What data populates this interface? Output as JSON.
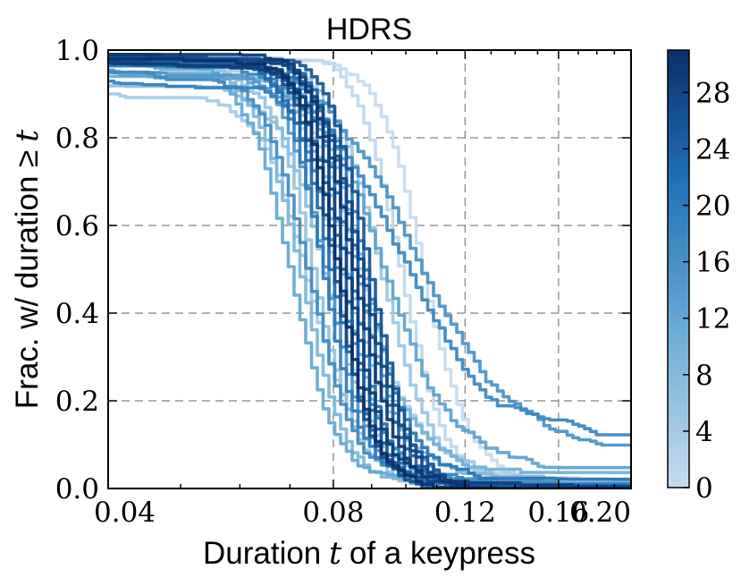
{
  "chart_data": {
    "type": "line",
    "title": "HDRS",
    "xlabel_text": "Duration",
    "xlabel_var": "t",
    "xlabel_rest": "of a keypress",
    "ylabel_text": "Frac. w/ duration ≥",
    "ylabel_var": "t",
    "x_scale": "log",
    "xlim": [
      0.04,
      0.2
    ],
    "ylim": [
      0.0,
      1.0
    ],
    "x_ticks": [
      0.04,
      0.08,
      0.12,
      0.16,
      0.2
    ],
    "x_tick_labels": [
      "0.04",
      "0.08",
      "0.12",
      "0.16",
      "0.20"
    ],
    "y_ticks": [
      0.0,
      0.2,
      0.4,
      0.6,
      0.8,
      1.0
    ],
    "y_tick_labels": [
      "0.0",
      "0.2",
      "0.4",
      "0.6",
      "0.8",
      "1.0"
    ],
    "grid": true,
    "colorbar": {
      "position": "right",
      "range": [
        0,
        31
      ],
      "ticks": [
        0,
        4,
        8,
        12,
        16,
        20,
        24,
        28
      ],
      "tick_labels": [
        "0",
        "4",
        "8",
        "12",
        "16",
        "20",
        "24",
        "28"
      ],
      "color_low": "#c6dbef",
      "color_high": "#08306b"
    },
    "series_note_colorbar_value_key": "c",
    "series": [
      {
        "c": 0,
        "start": 0.99,
        "x50": 0.105,
        "steep": 7.5,
        "tail": 0.02
      },
      {
        "c": 1,
        "start": 0.99,
        "x50": 0.098,
        "steep": 8.0,
        "tail": 0.01
      },
      {
        "c": 2,
        "start": 0.98,
        "x50": 0.08,
        "steep": 8.5,
        "tail": 0.0
      },
      {
        "c": 3,
        "start": 0.97,
        "x50": 0.086,
        "steep": 6.0,
        "tail": 0.03
      },
      {
        "c": 4,
        "start": 0.9,
        "x50": 0.074,
        "steep": 7.0,
        "tail": 0.02
      },
      {
        "c": 5,
        "start": 0.99,
        "x50": 0.092,
        "steep": 6.5,
        "tail": 0.02
      },
      {
        "c": 6,
        "start": 0.97,
        "x50": 0.075,
        "steep": 7.8,
        "tail": 0.01
      },
      {
        "c": 7,
        "start": 0.92,
        "x50": 0.078,
        "steep": 7.2,
        "tail": 0.02
      },
      {
        "c": 8,
        "start": 0.98,
        "x50": 0.083,
        "steep": 7.0,
        "tail": 0.03
      },
      {
        "c": 9,
        "start": 0.96,
        "x50": 0.072,
        "steep": 7.5,
        "tail": 0.01
      },
      {
        "c": 10,
        "start": 0.98,
        "x50": 0.087,
        "steep": 6.8,
        "tail": 0.04
      },
      {
        "c": 11,
        "start": 0.94,
        "x50": 0.082,
        "steep": 8.5,
        "tail": 0.02
      },
      {
        "c": 12,
        "start": 0.97,
        "x50": 0.07,
        "steep": 7.6,
        "tail": 0.01
      },
      {
        "c": 13,
        "start": 0.95,
        "x50": 0.093,
        "steep": 5.0,
        "tail": 0.05
      },
      {
        "c": 14,
        "start": 0.99,
        "x50": 0.085,
        "steep": 7.2,
        "tail": 0.02
      },
      {
        "c": 15,
        "start": 0.96,
        "x50": 0.078,
        "steep": 8.2,
        "tail": 0.01
      },
      {
        "c": 16,
        "start": 0.99,
        "x50": 0.102,
        "steep": 3.6,
        "tail": 0.09
      },
      {
        "c": 17,
        "start": 0.95,
        "x50": 0.074,
        "steep": 7.4,
        "tail": 0.02
      },
      {
        "c": 18,
        "start": 0.98,
        "x50": 0.097,
        "steep": 3.8,
        "tail": 0.12
      },
      {
        "c": 19,
        "start": 0.93,
        "x50": 0.081,
        "steep": 8.0,
        "tail": 0.02
      },
      {
        "c": 20,
        "start": 0.99,
        "x50": 0.077,
        "steep": 9.0,
        "tail": 0.01
      },
      {
        "c": 21,
        "start": 0.97,
        "x50": 0.088,
        "steep": 7.8,
        "tail": 0.03
      },
      {
        "c": 22,
        "start": 0.99,
        "x50": 0.084,
        "steep": 9.5,
        "tail": 0.0
      },
      {
        "c": 23,
        "start": 0.98,
        "x50": 0.079,
        "steep": 8.0,
        "tail": 0.01
      },
      {
        "c": 24,
        "start": 0.99,
        "x50": 0.086,
        "steep": 8.6,
        "tail": 0.0
      },
      {
        "c": 25,
        "start": 0.98,
        "x50": 0.082,
        "steep": 8.8,
        "tail": 0.01
      },
      {
        "c": 26,
        "start": 0.99,
        "x50": 0.089,
        "steep": 8.2,
        "tail": 0.0
      },
      {
        "c": 27,
        "start": 0.98,
        "x50": 0.08,
        "steep": 9.2,
        "tail": 0.0
      },
      {
        "c": 28,
        "start": 0.99,
        "x50": 0.087,
        "steep": 8.0,
        "tail": 0.0
      },
      {
        "c": 29,
        "start": 0.97,
        "x50": 0.083,
        "steep": 9.0,
        "tail": 0.01
      },
      {
        "c": 30,
        "start": 0.99,
        "x50": 0.085,
        "steep": 8.4,
        "tail": 0.0
      },
      {
        "c": 31,
        "start": 0.98,
        "x50": 0.081,
        "steep": 9.4,
        "tail": 0.0
      }
    ]
  }
}
